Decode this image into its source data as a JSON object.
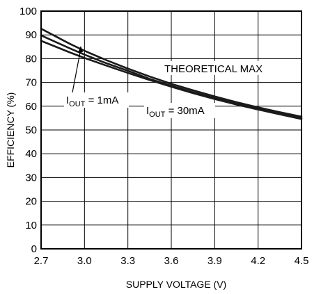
{
  "chart_data": {
    "type": "line",
    "xlabel": "SUPPLY VOLTAGE (V)",
    "ylabel": "EFFICIENCY (%)",
    "xlim": [
      2.7,
      4.5
    ],
    "ylim": [
      0,
      100
    ],
    "x_ticks": [
      "2.7",
      "3.0",
      "3.3",
      "3.6",
      "3.9",
      "4.2",
      "4.5"
    ],
    "y_ticks": [
      "0",
      "10",
      "20",
      "30",
      "40",
      "50",
      "60",
      "70",
      "80",
      "90",
      "100"
    ],
    "grid": true,
    "series": [
      {
        "name": "THEORETICAL MAX",
        "x": [
          2.7,
          2.9,
          3.0,
          3.15,
          3.3,
          3.45,
          3.6,
          3.75,
          3.9,
          4.05,
          4.2,
          4.35,
          4.5
        ],
        "values": [
          92.6,
          86.2,
          83.3,
          79.4,
          75.8,
          72.5,
          69.4,
          66.7,
          64.1,
          61.7,
          59.5,
          57.5,
          55.6
        ],
        "color": "#1a1a1a"
      },
      {
        "name": "IOUT = 1mA",
        "x": [
          2.7,
          2.9,
          3.0,
          3.15,
          3.3,
          3.45,
          3.6,
          3.75,
          3.9,
          4.05,
          4.2,
          4.35,
          4.5
        ],
        "values": [
          89.8,
          84.3,
          81.7,
          78.1,
          74.9,
          71.5,
          68.6,
          65.9,
          63.4,
          61.0,
          58.9,
          56.9,
          54.9
        ],
        "color": "#1a1a1a"
      },
      {
        "name": "IOUT = 30mA",
        "x": [
          2.7,
          2.9,
          3.0,
          3.15,
          3.3,
          3.45,
          3.6,
          3.75,
          3.9,
          4.05,
          4.2,
          4.35,
          4.5
        ],
        "values": [
          87.5,
          82.6,
          80.3,
          77.1,
          74.0,
          71.0,
          68.2,
          65.5,
          63.0,
          60.7,
          58.6,
          56.6,
          54.6
        ],
        "color": "#1a1a1a"
      }
    ],
    "annotations": {
      "theoretical_max": "THEORETICAL MAX",
      "iout_1ma": {
        "main": "I",
        "sub": "OUT",
        "rest": " = 1mA"
      },
      "iout_30ma": {
        "main": "I",
        "sub": "OUT",
        "rest": " = 30mA"
      }
    }
  }
}
